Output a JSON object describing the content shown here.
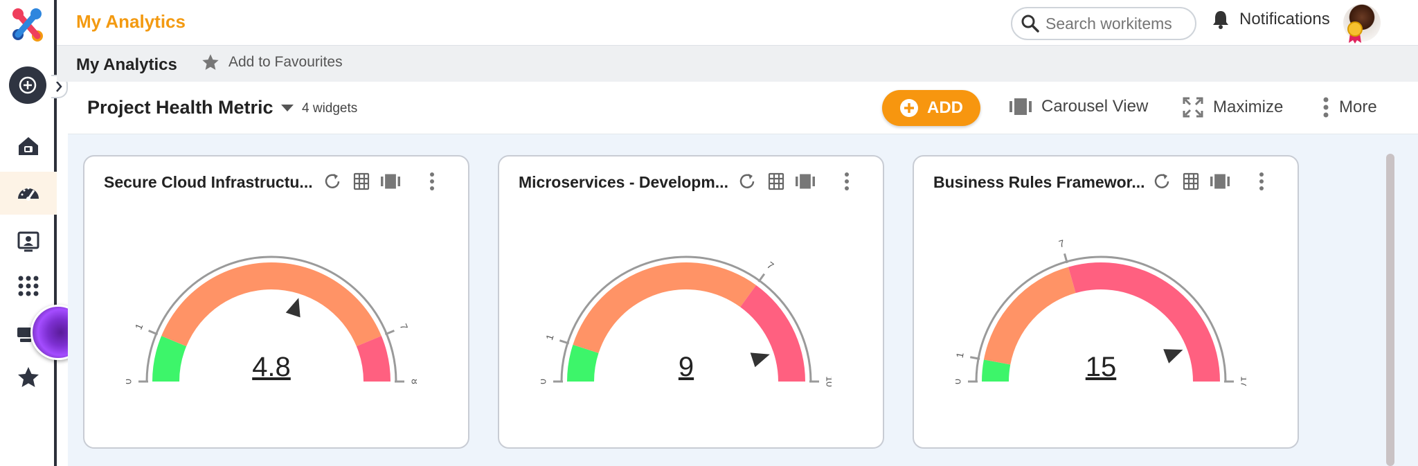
{
  "app": {
    "title": "My Analytics"
  },
  "search": {
    "placeholder": "Search workitems"
  },
  "notifications": {
    "label": "Notifications"
  },
  "breadcrumb": {
    "title": "My Analytics",
    "favourites_label": "Add to Favourites"
  },
  "dashboard": {
    "title": "Project Health Metric",
    "widget_count": "4 widgets",
    "add_label": "ADD",
    "carousel_label": "Carousel View",
    "maximize_label": "Maximize",
    "more_label": "More"
  },
  "colors": {
    "accent": "#f7960f",
    "green": "#3df56a",
    "orange": "#ff9366",
    "red": "#ff6080",
    "rail": "#2f3441"
  },
  "rail_icons": [
    "create-icon",
    "home-icon",
    "dashboard-gauge-icon",
    "presentation-icon",
    "apps-grid-icon",
    "cards-icon",
    "star-icon"
  ],
  "widgets": [
    {
      "title": "Secure Cloud Infrastructu...",
      "value": "4.8",
      "numeric_value": 4.8,
      "min": 0,
      "max": 8,
      "green_to": 1,
      "orange_to": 7,
      "ticks": [
        "0",
        "1",
        "7",
        "8"
      ]
    },
    {
      "title": "Microservices - Developm...",
      "value": "9",
      "numeric_value": 9,
      "min": 0,
      "max": 10,
      "green_to": 1,
      "orange_to": 7,
      "ticks": [
        "0",
        "1",
        "7",
        "10"
      ]
    },
    {
      "title": "Business Rules Framewor...",
      "value": "15",
      "numeric_value": 15,
      "min": 0,
      "max": 17,
      "green_to": 1,
      "orange_to": 7,
      "ticks": [
        "0",
        "1",
        "7",
        "17"
      ]
    }
  ]
}
